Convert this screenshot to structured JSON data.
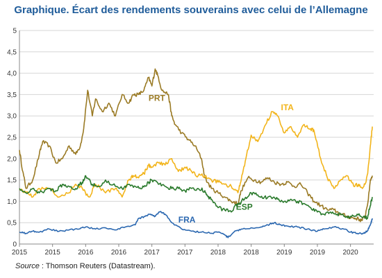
{
  "title": "Graphique. Écart des rendements souverains avec celui de l’Allemagne",
  "source": {
    "prefix": "Source",
    "separator": " : ",
    "text": "Thomson Reuters (Datastream)."
  },
  "chart_data": {
    "type": "line",
    "title": "Graphique. Écart des rendements souverains avec celui de l’Allemagne",
    "xlabel": "",
    "ylabel": "",
    "ylim": [
      0,
      5
    ],
    "xlim": [
      2015.0,
      2020.35
    ],
    "grid": true,
    "legend": "inline labels",
    "y_ticks": [
      "0",
      "0,5",
      "1,0",
      "1,5",
      "2,0",
      "2,5",
      "3,0",
      "3,5",
      "4,0",
      "4,5",
      "5"
    ],
    "x_ticks": [
      {
        "pos": 2015.0,
        "label": "2015"
      },
      {
        "pos": 2015.5,
        "label": "2015"
      },
      {
        "pos": 2016.0,
        "label": "2016"
      },
      {
        "pos": 2016.5,
        "label": "2016"
      },
      {
        "pos": 2017.0,
        "label": "2017"
      },
      {
        "pos": 2017.5,
        "label": "2017"
      },
      {
        "pos": 2018.0,
        "label": "2018"
      },
      {
        "pos": 2018.5,
        "label": "2018"
      },
      {
        "pos": 2019.0,
        "label": "2019"
      },
      {
        "pos": 2019.5,
        "label": "2019"
      },
      {
        "pos": 2020.0,
        "label": "2020"
      }
    ],
    "series": [
      {
        "name": "PRT",
        "color": "#9a7a24",
        "label_at": [
          2016.95,
          3.35
        ],
        "x": [
          2015.0,
          2015.05,
          2015.1,
          2015.2,
          2015.3,
          2015.35,
          2015.45,
          2015.55,
          2015.65,
          2015.75,
          2015.85,
          2015.92,
          2015.97,
          2016.03,
          2016.1,
          2016.15,
          2016.25,
          2016.35,
          2016.45,
          2016.55,
          2016.65,
          2016.72,
          2016.8,
          2016.88,
          2016.95,
          2017.0,
          2017.05,
          2017.1,
          2017.15,
          2017.25,
          2017.3,
          2017.35,
          2017.45,
          2017.55,
          2017.65,
          2017.75,
          2017.8,
          2017.9,
          2018.0,
          2018.1,
          2018.2,
          2018.3,
          2018.35,
          2018.45,
          2018.55,
          2018.65,
          2018.75,
          2018.85,
          2018.95,
          2019.05,
          2019.15,
          2019.25,
          2019.35,
          2019.45,
          2019.55,
          2019.65,
          2019.75,
          2019.85,
          2019.95,
          2020.05,
          2020.1,
          2020.17,
          2020.22,
          2020.27,
          2020.3,
          2020.33
        ],
        "y": [
          2.2,
          1.7,
          1.3,
          1.5,
          2.1,
          2.4,
          2.3,
          1.9,
          2.0,
          2.3,
          2.1,
          2.3,
          2.7,
          3.6,
          3.0,
          3.4,
          3.1,
          3.3,
          3.0,
          3.5,
          3.3,
          3.5,
          3.5,
          3.6,
          3.9,
          3.7,
          4.1,
          3.9,
          3.6,
          3.5,
          3.0,
          2.8,
          2.6,
          2.45,
          2.3,
          2.0,
          1.55,
          1.3,
          1.2,
          1.1,
          1.0,
          0.95,
          1.25,
          1.55,
          1.5,
          1.45,
          1.55,
          1.45,
          1.4,
          1.45,
          1.35,
          1.4,
          1.2,
          1.0,
          0.9,
          0.8,
          0.8,
          0.7,
          0.65,
          0.6,
          0.6,
          0.55,
          0.65,
          1.05,
          1.5,
          1.6
        ]
      },
      {
        "name": "ITA",
        "color": "#f2b41a",
        "label_at": [
          2018.95,
          3.13
        ],
        "x": [
          2015.0,
          2015.1,
          2015.2,
          2015.3,
          2015.45,
          2015.6,
          2015.75,
          2015.85,
          2015.95,
          2016.05,
          2016.15,
          2016.3,
          2016.45,
          2016.55,
          2016.65,
          2016.72,
          2016.8,
          2016.88,
          2016.95,
          2017.0,
          2017.1,
          2017.2,
          2017.3,
          2017.4,
          2017.5,
          2017.6,
          2017.7,
          2017.8,
          2017.9,
          2018.0,
          2018.1,
          2018.2,
          2018.3,
          2018.35,
          2018.42,
          2018.5,
          2018.6,
          2018.72,
          2018.82,
          2018.9,
          2019.0,
          2019.1,
          2019.2,
          2019.3,
          2019.4,
          2019.45,
          2019.55,
          2019.65,
          2019.75,
          2019.85,
          2019.95,
          2020.05,
          2020.12,
          2020.18,
          2020.22,
          2020.26,
          2020.3,
          2020.33
        ],
        "y": [
          1.3,
          1.2,
          1.1,
          1.3,
          1.3,
          1.1,
          1.2,
          1.4,
          1.3,
          1.1,
          1.4,
          1.2,
          1.3,
          1.1,
          1.5,
          1.6,
          1.55,
          1.65,
          1.85,
          1.8,
          1.9,
          1.85,
          2.0,
          1.7,
          1.8,
          1.7,
          1.6,
          1.6,
          1.5,
          1.45,
          1.4,
          1.35,
          1.2,
          1.5,
          2.0,
          2.55,
          2.4,
          2.8,
          3.1,
          3.0,
          2.6,
          2.75,
          2.5,
          2.8,
          2.7,
          2.65,
          2.0,
          1.55,
          1.3,
          1.5,
          1.6,
          1.35,
          1.4,
          1.3,
          1.4,
          1.65,
          2.3,
          2.75
        ]
      },
      {
        "name": "ESP",
        "color": "#2a7a2c",
        "label_at": [
          2018.27,
          0.8
        ],
        "x": [
          2015.0,
          2015.1,
          2015.2,
          2015.3,
          2015.45,
          2015.55,
          2015.65,
          2015.75,
          2015.85,
          2015.95,
          2016.0,
          2016.1,
          2016.2,
          2016.3,
          2016.45,
          2016.55,
          2016.65,
          2016.75,
          2016.85,
          2016.95,
          2017.0,
          2017.1,
          2017.2,
          2017.3,
          2017.4,
          2017.5,
          2017.6,
          2017.7,
          2017.8,
          2017.85,
          2017.9,
          2018.0,
          2018.1,
          2018.2,
          2018.3,
          2018.4,
          2018.5,
          2018.6,
          2018.7,
          2018.8,
          2018.9,
          2019.0,
          2019.1,
          2019.2,
          2019.3,
          2019.4,
          2019.5,
          2019.6,
          2019.7,
          2019.8,
          2019.9,
          2020.0,
          2020.1,
          2020.2,
          2020.25,
          2020.3,
          2020.33
        ],
        "y": [
          1.3,
          1.2,
          1.3,
          1.2,
          1.3,
          1.25,
          1.4,
          1.35,
          1.3,
          1.45,
          1.6,
          1.4,
          1.35,
          1.5,
          1.35,
          1.3,
          1.4,
          1.35,
          1.3,
          1.45,
          1.5,
          1.4,
          1.35,
          1.3,
          1.3,
          1.25,
          1.3,
          1.3,
          1.25,
          1.1,
          1.05,
          0.85,
          0.8,
          0.75,
          0.95,
          1.05,
          1.2,
          1.15,
          1.1,
          1.1,
          1.05,
          1.0,
          1.05,
          1.0,
          0.95,
          0.85,
          0.75,
          0.7,
          0.75,
          0.7,
          0.65,
          0.65,
          0.7,
          0.65,
          0.6,
          0.9,
          1.1
        ]
      },
      {
        "name": "FRA",
        "color": "#2a67b0",
        "label_at": [
          2017.4,
          0.5
        ],
        "x": [
          2015.0,
          2015.1,
          2015.2,
          2015.3,
          2015.45,
          2015.6,
          2015.75,
          2015.9,
          2016.0,
          2016.15,
          2016.3,
          2016.45,
          2016.6,
          2016.75,
          2016.8,
          2016.9,
          2016.98,
          2017.05,
          2017.12,
          2017.2,
          2017.3,
          2017.45,
          2017.6,
          2017.75,
          2017.9,
          2018.0,
          2018.1,
          2018.15,
          2018.25,
          2018.35,
          2018.5,
          2018.65,
          2018.75,
          2018.85,
          2018.95,
          2019.05,
          2019.2,
          2019.35,
          2019.5,
          2019.6,
          2019.75,
          2019.9,
          2020.0,
          2020.1,
          2020.2,
          2020.25,
          2020.3,
          2020.33
        ],
        "y": [
          0.28,
          0.25,
          0.3,
          0.28,
          0.35,
          0.3,
          0.33,
          0.35,
          0.4,
          0.35,
          0.38,
          0.33,
          0.4,
          0.45,
          0.6,
          0.65,
          0.7,
          0.65,
          0.75,
          0.7,
          0.5,
          0.35,
          0.3,
          0.28,
          0.25,
          0.28,
          0.22,
          0.15,
          0.3,
          0.35,
          0.38,
          0.4,
          0.45,
          0.5,
          0.45,
          0.42,
          0.4,
          0.35,
          0.3,
          0.35,
          0.4,
          0.35,
          0.28,
          0.25,
          0.25,
          0.3,
          0.45,
          0.6
        ]
      }
    ]
  }
}
